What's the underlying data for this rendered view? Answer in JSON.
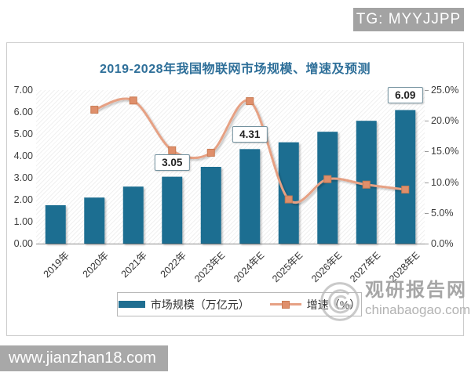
{
  "overlay": {
    "tg_badge": "TG: MYYJJPP",
    "bottom_url": "www.jianzhan18.com"
  },
  "watermark": {
    "site_name": "观研报告网",
    "site_domain": "chinabaogao.com"
  },
  "chart_data": {
    "type": "bar",
    "title": "2019-2028年我国物联网市场规模、增速及预测",
    "categories": [
      "2019年",
      "2020年",
      "2021年",
      "2022年",
      "2023年E",
      "2024年E",
      "2025年E",
      "2026年E",
      "2027年E",
      "2028年E"
    ],
    "series": [
      {
        "name": "市场规模（万亿元）",
        "type": "bar",
        "axis": "left",
        "values": [
          1.75,
          2.1,
          2.6,
          3.05,
          3.5,
          4.31,
          4.62,
          5.1,
          5.6,
          6.09
        ]
      },
      {
        "name": "增速（%）",
        "type": "line",
        "axis": "right",
        "values": [
          null,
          21.8,
          23.3,
          15.2,
          14.8,
          23.2,
          7.2,
          10.5,
          9.6,
          8.8
        ]
      }
    ],
    "annotations": [
      {
        "index": 3,
        "text": "3.05"
      },
      {
        "index": 5,
        "text": "4.31"
      },
      {
        "index": 9,
        "text": "6.09"
      }
    ],
    "left_axis": {
      "min": 0,
      "max": 7,
      "step": 1,
      "decimals": 2,
      "suffix": ""
    },
    "right_axis": {
      "min": 0,
      "max": 25,
      "step": 5,
      "decimals": 1,
      "suffix": "%"
    },
    "grid": false,
    "legend_position": "bottom",
    "colors": {
      "bar": "#1f6e91",
      "line": "#e6a184",
      "marker_fill": "#df8f6b",
      "marker_stroke": "#c87a52",
      "title": "#2e6f99"
    }
  }
}
